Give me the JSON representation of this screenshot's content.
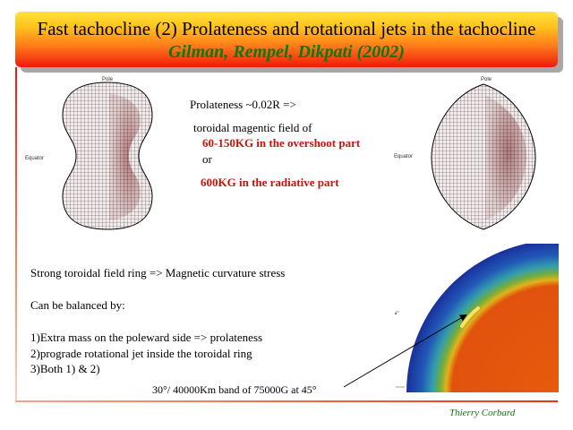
{
  "title": {
    "line1": "Fast tachocline (2) Prolateness and rotational jets in the tachocline",
    "line2": "Gilman, Rempel, Dikpati (2002)"
  },
  "left_figure": {
    "pole_label": "Pole",
    "equator_label": "Equator"
  },
  "right_figure": {
    "pole_label": "Pole",
    "equator_label": "Equator"
  },
  "center_text": {
    "prolateness": "Prolateness ~0.02R  =>",
    "toroidal": "toroidal magentic field  of",
    "overshoot": "60-150KG in the overshoot part",
    "or": "or",
    "radiative": "600KG in the radiative part"
  },
  "lower_text": {
    "l1": "Strong toroidal  field ring => Magnetic curvature stress",
    "l2": "Can be balanced by:",
    "l3": "1)Extra mass on the poleward side => prolateness",
    "l4": "2)prograde rotational jet inside the toroidal ring",
    "l5": "3)Both 1) & 2)",
    "band": "30°/ 40000Km band of 75000G at 45°"
  },
  "signature": "Thierry Corbard",
  "colors": {
    "red_text": "#c8140a",
    "green_text": "#0a7a0a"
  }
}
